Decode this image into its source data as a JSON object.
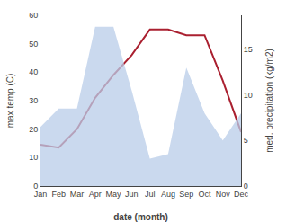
{
  "chart_data": {
    "type": "line",
    "xlabel": "date (month)",
    "ylabel": "max temp (C)",
    "y2label": "med. precipitation (kg/m2)",
    "categories": [
      "Jan",
      "Feb",
      "Mar",
      "Apr",
      "May",
      "Jun",
      "Jul",
      "Aug",
      "Sep",
      "Oct",
      "Nov",
      "Dec"
    ],
    "series": [
      {
        "type": "area",
        "color": "#b8cce8",
        "axis": "y2",
        "values": [
          6.5,
          8.5,
          8.5,
          17.5,
          17.5,
          10.5,
          3.0,
          3.5,
          13.0,
          8.0,
          5.0,
          8.0
        ]
      },
      {
        "type": "line",
        "color": "#aa2030",
        "values": [
          14.5,
          13.5,
          20,
          31,
          39,
          46,
          55,
          55,
          53,
          53,
          37,
          19
        ]
      }
    ],
    "ylim": [
      0,
      60
    ],
    "yticks": [
      0,
      10,
      20,
      30,
      40,
      50,
      60
    ],
    "y2lim": [
      0,
      18.75
    ],
    "y2ticks": [
      0,
      5,
      10,
      15
    ],
    "grid": false
  }
}
